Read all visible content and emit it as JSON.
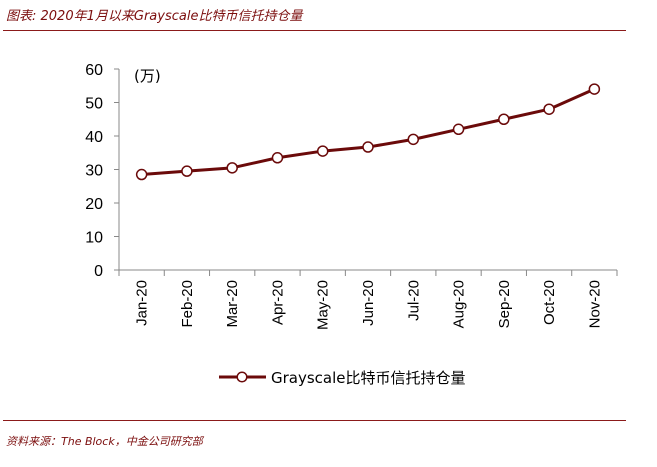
{
  "header": {
    "title": "图表: 2020年1月以来Grayscale比特币信托持仓量"
  },
  "footer": {
    "source": "资料来源：The Block，中金公司研究部"
  },
  "colors": {
    "accent": "#7b0d0d",
    "series_line": "#6b0a0a",
    "marker_fill": "#ffffff",
    "axis": "#888888"
  },
  "chart_data": {
    "type": "line",
    "title": "",
    "unit_label": "(万)",
    "xlabel": "",
    "ylabel": "",
    "categories": [
      "Jan-20",
      "Feb-20",
      "Mar-20",
      "Apr-20",
      "May-20",
      "Jun-20",
      "Jul-20",
      "Aug-20",
      "Sep-20",
      "Oct-20",
      "Nov-20"
    ],
    "series": [
      {
        "name": "Grayscale比特币信托持仓量",
        "values": [
          28.5,
          29.5,
          30.5,
          33.5,
          35.5,
          36.7,
          39.0,
          42.0,
          45.0,
          48.0,
          54.0
        ]
      }
    ],
    "ylim": [
      0,
      60
    ],
    "yticks": [
      "0",
      "10",
      "20",
      "30",
      "40",
      "50",
      "60"
    ],
    "grid": false,
    "legend_position": "bottom"
  }
}
